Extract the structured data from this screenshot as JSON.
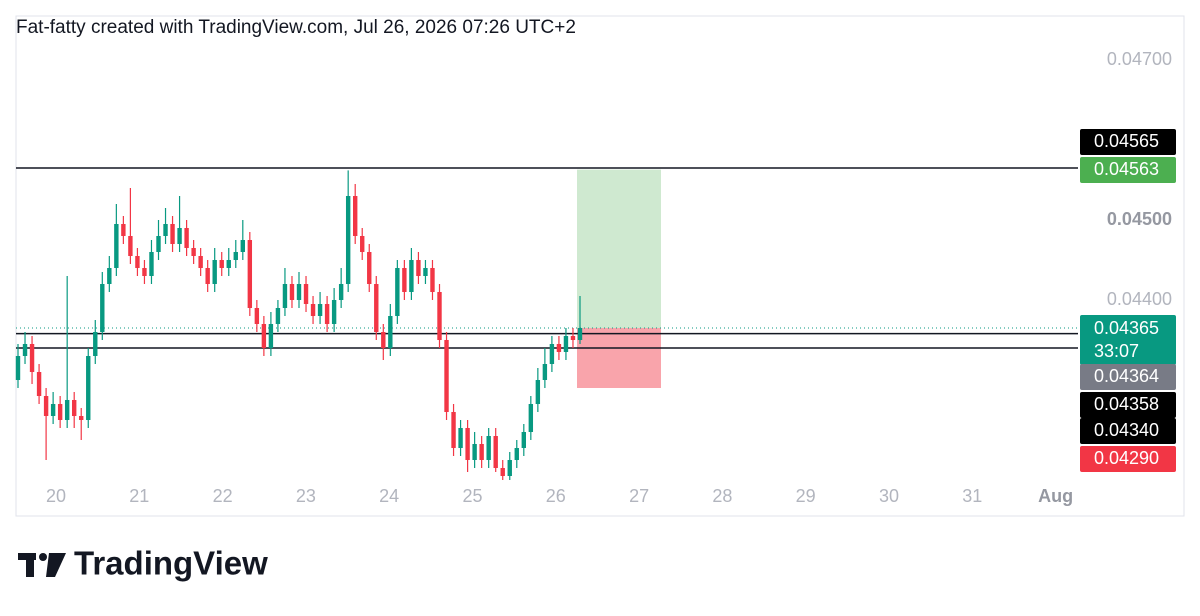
{
  "header": {
    "attribution": "Fat-fatty created with TradingView.com, Jul 26, 2026 07:26 UTC+2"
  },
  "chart_data": {
    "type": "candlestick",
    "x_labels": [
      "20",
      "21",
      "22",
      "23",
      "24",
      "25",
      "26",
      "27",
      "28",
      "29",
      "30",
      "31",
      "Aug"
    ],
    "open": [
      0.043,
      0.0433,
      0.04345,
      0.0431,
      0.0428,
      0.04255,
      0.0427,
      0.0425,
      0.04275,
      0.04255,
      0.0425,
      0.0433,
      0.0436,
      0.0442,
      0.0444,
      0.04495,
      0.0448,
      0.04455,
      0.0444,
      0.0443,
      0.0446,
      0.0448,
      0.04495,
      0.0447,
      0.0449,
      0.04465,
      0.04455,
      0.0444,
      0.0442,
      0.0445,
      0.0444,
      0.0445,
      0.0446,
      0.04475,
      0.0439,
      0.0437,
      0.0434,
      0.0437,
      0.0439,
      0.0442,
      0.044,
      0.0442,
      0.04395,
      0.0438,
      0.04395,
      0.0437,
      0.044,
      0.0442,
      0.0453,
      0.0448,
      0.0446,
      0.0442,
      0.0436,
      0.0434,
      0.0438,
      0.0444,
      0.0441,
      0.0445,
      0.0443,
      0.0444,
      0.0441,
      0.0435,
      0.0426,
      0.04215,
      0.0424,
      0.042,
      0.0422,
      0.042,
      0.0423,
      0.0419,
      0.0418,
      0.042,
      0.04215,
      0.04235,
      0.0427,
      0.043,
      0.0432,
      0.04345,
      0.04335,
      0.04355,
      0.0435
    ],
    "high": [
      0.04345,
      0.0436,
      0.04355,
      0.0432,
      0.0429,
      0.04285,
      0.0428,
      0.0443,
      0.04285,
      0.04265,
      0.0434,
      0.04375,
      0.04435,
      0.04455,
      0.0452,
      0.04505,
      0.0454,
      0.04465,
      0.0445,
      0.04475,
      0.045,
      0.04515,
      0.04505,
      0.0453,
      0.045,
      0.04475,
      0.04465,
      0.0445,
      0.04465,
      0.0446,
      0.04465,
      0.04475,
      0.045,
      0.04485,
      0.044,
      0.0438,
      0.04385,
      0.044,
      0.0444,
      0.0443,
      0.04435,
      0.0443,
      0.04405,
      0.0441,
      0.04405,
      0.04415,
      0.0444,
      0.04562,
      0.04545,
      0.0449,
      0.0447,
      0.0443,
      0.0437,
      0.04395,
      0.0445,
      0.0445,
      0.04465,
      0.0446,
      0.0445,
      0.0445,
      0.0442,
      0.0436,
      0.0427,
      0.0425,
      0.0425,
      0.04235,
      0.0423,
      0.0424,
      0.0424,
      0.042,
      0.0421,
      0.04225,
      0.04245,
      0.0428,
      0.04315,
      0.0434,
      0.04355,
      0.04355,
      0.04365,
      0.04365,
      0.04405
    ],
    "low": [
      0.0429,
      0.0432,
      0.04295,
      0.0427,
      0.042,
      0.04245,
      0.0424,
      0.0424,
      0.0424,
      0.04225,
      0.0424,
      0.0432,
      0.0435,
      0.0441,
      0.0443,
      0.0447,
      0.04445,
      0.0443,
      0.0442,
      0.0442,
      0.0445,
      0.0447,
      0.0446,
      0.0446,
      0.04455,
      0.04445,
      0.0443,
      0.0441,
      0.0441,
      0.0443,
      0.0443,
      0.0444,
      0.0445,
      0.0438,
      0.0436,
      0.0433,
      0.0433,
      0.0436,
      0.0438,
      0.0439,
      0.0439,
      0.04385,
      0.0437,
      0.0437,
      0.0436,
      0.0436,
      0.0439,
      0.0441,
      0.0447,
      0.0445,
      0.0441,
      0.0435,
      0.04325,
      0.0433,
      0.0437,
      0.044,
      0.044,
      0.0442,
      0.0442,
      0.044,
      0.0434,
      0.0425,
      0.04205,
      0.04205,
      0.04185,
      0.0419,
      0.0419,
      0.0419,
      0.04185,
      0.04175,
      0.04175,
      0.0419,
      0.04205,
      0.04225,
      0.0426,
      0.0429,
      0.0431,
      0.04325,
      0.04325,
      0.0434,
      0.04345
    ],
    "close": [
      0.0433,
      0.04345,
      0.0431,
      0.0428,
      0.04255,
      0.0427,
      0.0425,
      0.04275,
      0.04255,
      0.0425,
      0.0433,
      0.0436,
      0.0442,
      0.0444,
      0.04495,
      0.0448,
      0.04455,
      0.0444,
      0.0443,
      0.0446,
      0.0448,
      0.04495,
      0.0447,
      0.0449,
      0.04465,
      0.04455,
      0.0444,
      0.0442,
      0.0445,
      0.0444,
      0.0445,
      0.0446,
      0.04475,
      0.0439,
      0.0437,
      0.0434,
      0.0437,
      0.0439,
      0.0442,
      0.044,
      0.0442,
      0.04395,
      0.0438,
      0.04395,
      0.0437,
      0.044,
      0.0442,
      0.0453,
      0.0448,
      0.0446,
      0.0442,
      0.0436,
      0.0434,
      0.0438,
      0.0444,
      0.0441,
      0.0445,
      0.0443,
      0.0444,
      0.0441,
      0.0435,
      0.0426,
      0.04215,
      0.0424,
      0.042,
      0.0422,
      0.042,
      0.0423,
      0.0419,
      0.0418,
      0.042,
      0.04215,
      0.04235,
      0.0427,
      0.043,
      0.0432,
      0.04345,
      0.04335,
      0.04355,
      0.0435,
      0.04365
    ],
    "up_color": "#089981",
    "down_color": "#f23645",
    "ylim": [
      0.04175,
      0.04755
    ],
    "yticks": [
      {
        "value": 0.047,
        "label": "0.04700"
      },
      {
        "value": 0.045,
        "label": "0.04500"
      },
      {
        "value": 0.044,
        "label": "0.04400"
      }
    ],
    "price_labels": [
      {
        "value": 0.04565,
        "label": "0.04565",
        "color": "#000000",
        "line": "solid"
      },
      {
        "value": 0.04563,
        "label": "0.04563",
        "color": "#4caf50"
      },
      {
        "value": 0.04365,
        "label": "0.04365",
        "color": "#089981",
        "line": "dotted"
      },
      {
        "value": 0.04364,
        "label": "0.04364",
        "color": "#787b86"
      },
      {
        "value": 0.04358,
        "label": "0.04358",
        "color": "#000000",
        "line": "solid"
      },
      {
        "value": 0.0434,
        "label": "0.04340",
        "color": "#000000",
        "line": "solid"
      },
      {
        "value": 0.0429,
        "label": "0.04290",
        "color": "#f23645"
      }
    ],
    "countdown": "33:07"
  },
  "footer": {
    "logo_text": "TradingView"
  }
}
